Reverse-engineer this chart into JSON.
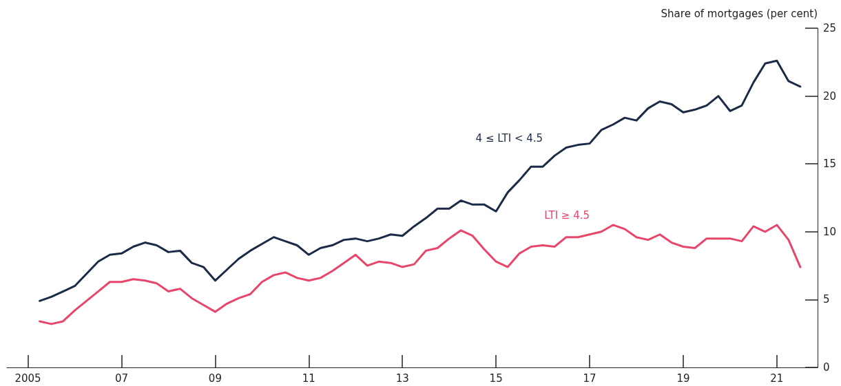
{
  "chart_data": {
    "type": "line",
    "ylabel": "Share of mortgages (per cent)",
    "x": [
      2005.25,
      2005.5,
      2005.75,
      2006,
      2006.25,
      2006.5,
      2006.75,
      2007,
      2007.25,
      2007.5,
      2007.75,
      2008,
      2008.25,
      2008.5,
      2008.75,
      2009,
      2009.25,
      2009.5,
      2009.75,
      2010,
      2010.25,
      2010.5,
      2010.75,
      2011,
      2011.25,
      2011.5,
      2011.75,
      2012,
      2012.25,
      2012.5,
      2012.75,
      2013,
      2013.25,
      2013.5,
      2013.75,
      2014,
      2014.25,
      2014.5,
      2014.75,
      2015,
      2015.25,
      2015.5,
      2015.75,
      2016,
      2016.25,
      2016.5,
      2016.75,
      2017,
      2017.25,
      2017.5,
      2017.75,
      2018,
      2018.25,
      2018.5,
      2018.75,
      2019,
      2019.25,
      2019.5,
      2019.75,
      2020,
      2020.25,
      2020.5,
      2020.75,
      2021,
      2021.25,
      2021.5
    ],
    "series": [
      {
        "name": "4 ≤ LTI < 4.5",
        "color": "#1b2a47",
        "values": [
          4.9,
          5.2,
          5.6,
          6.0,
          6.9,
          7.8,
          8.3,
          8.4,
          8.9,
          9.2,
          9.0,
          8.5,
          8.6,
          7.7,
          7.4,
          6.4,
          7.2,
          8.0,
          8.6,
          9.1,
          9.6,
          9.3,
          9.0,
          8.3,
          8.8,
          9.0,
          9.4,
          9.5,
          9.3,
          9.5,
          9.8,
          9.7,
          10.4,
          11.0,
          11.7,
          11.7,
          12.3,
          12.0,
          12.0,
          11.5,
          12.9,
          13.8,
          14.8,
          14.8,
          15.6,
          16.2,
          16.4,
          16.5,
          17.5,
          17.9,
          18.4,
          18.2,
          19.1,
          19.6,
          19.4,
          18.8,
          19.0,
          19.3,
          20.0,
          18.9,
          19.3,
          21.0,
          22.4,
          22.6,
          21.1,
          20.7
        ]
      },
      {
        "name": "LTI ≥ 4.5",
        "color": "#e8456b",
        "values": [
          3.4,
          3.2,
          3.4,
          4.2,
          4.9,
          5.6,
          6.3,
          6.3,
          6.5,
          6.4,
          6.2,
          5.6,
          5.8,
          5.1,
          4.6,
          4.1,
          4.7,
          5.1,
          5.4,
          6.3,
          6.8,
          7.0,
          6.6,
          6.4,
          6.6,
          7.1,
          7.7,
          8.3,
          7.5,
          7.8,
          7.7,
          7.4,
          7.6,
          8.6,
          8.8,
          9.5,
          10.1,
          9.7,
          8.7,
          7.8,
          7.4,
          8.4,
          8.9,
          9.0,
          8.9,
          9.6,
          9.6,
          9.8,
          10.0,
          10.5,
          10.2,
          9.6,
          9.4,
          9.8,
          9.2,
          8.9,
          8.8,
          9.5,
          9.5,
          9.5,
          9.3,
          10.4,
          10.0,
          10.5,
          9.4,
          7.4
        ]
      }
    ],
    "xlim": [
      2004.55,
      2021.87
    ],
    "xticks": [
      {
        "value": 2005,
        "label": "2005"
      },
      {
        "value": 2007,
        "label": "07"
      },
      {
        "value": 2009,
        "label": "09"
      },
      {
        "value": 2011,
        "label": "11"
      },
      {
        "value": 2013,
        "label": "13"
      },
      {
        "value": 2015,
        "label": "15"
      },
      {
        "value": 2017,
        "label": "17"
      },
      {
        "value": 2019,
        "label": "19"
      },
      {
        "value": 2021,
        "label": "21"
      }
    ],
    "ylim": [
      0,
      25
    ],
    "yticks": [
      0,
      5,
      10,
      15,
      20,
      25
    ],
    "grid": false,
    "legend": false,
    "marker": "none",
    "line_style": "solid"
  }
}
